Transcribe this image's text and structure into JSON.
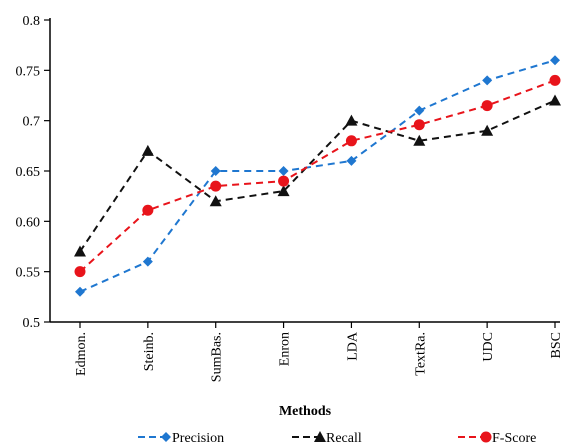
{
  "chart_data": {
    "type": "line",
    "title": "",
    "xlabel": "Methods",
    "ylabel": "",
    "categories": [
      "Edmon.",
      "Steinb.",
      "SumBas.",
      "Enron",
      "LDA",
      "TextRa.",
      "UDC",
      "BSC"
    ],
    "ylim": [
      0.5,
      0.8
    ],
    "yticks": [
      0.5,
      0.55,
      0.6,
      0.65,
      0.7,
      0.75,
      0.8
    ],
    "ytick_labels": [
      "0.5",
      "0.55",
      "0.60",
      "0.65",
      "0.7",
      "0.75",
      "0.8"
    ],
    "grid": false,
    "legend_position": "bottom",
    "series": [
      {
        "name": "Precision",
        "color": "#1f77d0",
        "marker": "diamond",
        "values": [
          0.53,
          0.56,
          0.65,
          0.65,
          0.66,
          0.71,
          0.74,
          0.76
        ]
      },
      {
        "name": "Recall",
        "color": "#111111",
        "marker": "triangle",
        "values": [
          0.57,
          0.67,
          0.62,
          0.63,
          0.7,
          0.68,
          0.69,
          0.72
        ]
      },
      {
        "name": "F-Score",
        "color": "#e8141b",
        "marker": "circle",
        "values": [
          0.55,
          0.611,
          0.635,
          0.64,
          0.68,
          0.696,
          0.715,
          0.74
        ]
      }
    ]
  }
}
